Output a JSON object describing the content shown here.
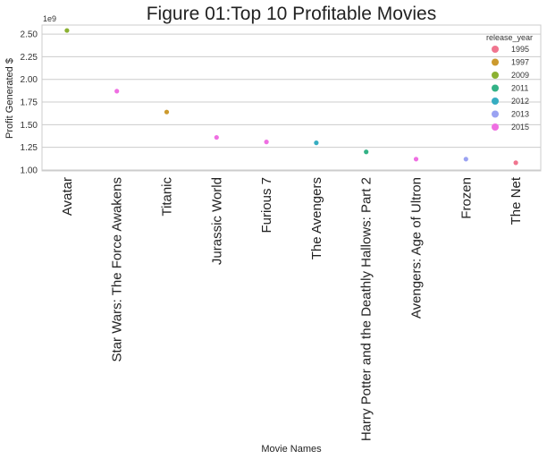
{
  "chart_data": {
    "type": "scatter",
    "title": "Figure 01:Top 10 Profitable Movies",
    "xlabel": "Movie Names",
    "ylabel": "Profit Generated $",
    "y_offset_label": "1e9",
    "ylim": [
      0.99,
      2.6
    ],
    "yticks": [
      "1.00",
      "1.25",
      "1.50",
      "1.75",
      "2.00",
      "2.25",
      "2.50"
    ],
    "grid": true,
    "legend_title": "release_year",
    "legend_position": "top-right",
    "categories": [
      "Avatar",
      "Star Wars: The Force Awakens",
      "Titanic",
      "Jurassic World",
      "Furious 7",
      "The Avengers",
      "Harry Potter and the Deathly Hallows: Part 2",
      "Avengers: Age of Ultron",
      "Frozen",
      "The Net"
    ],
    "values": [
      2.54,
      1.87,
      1.64,
      1.36,
      1.31,
      1.3,
      1.2,
      1.12,
      1.12,
      1.08
    ],
    "release_year": [
      "2009",
      "2015",
      "1997",
      "2015",
      "2015",
      "2012",
      "2011",
      "2015",
      "2013",
      "1995"
    ],
    "legend": [
      {
        "label": "1995",
        "color": "#f0758f"
      },
      {
        "label": "1997",
        "color": "#cc9a2e"
      },
      {
        "label": "2009",
        "color": "#8bb132"
      },
      {
        "label": "2011",
        "color": "#33b286"
      },
      {
        "label": "2012",
        "color": "#36adc1"
      },
      {
        "label": "2013",
        "color": "#9aa2f2"
      },
      {
        "label": "2015",
        "color": "#ef6fe2"
      }
    ]
  }
}
